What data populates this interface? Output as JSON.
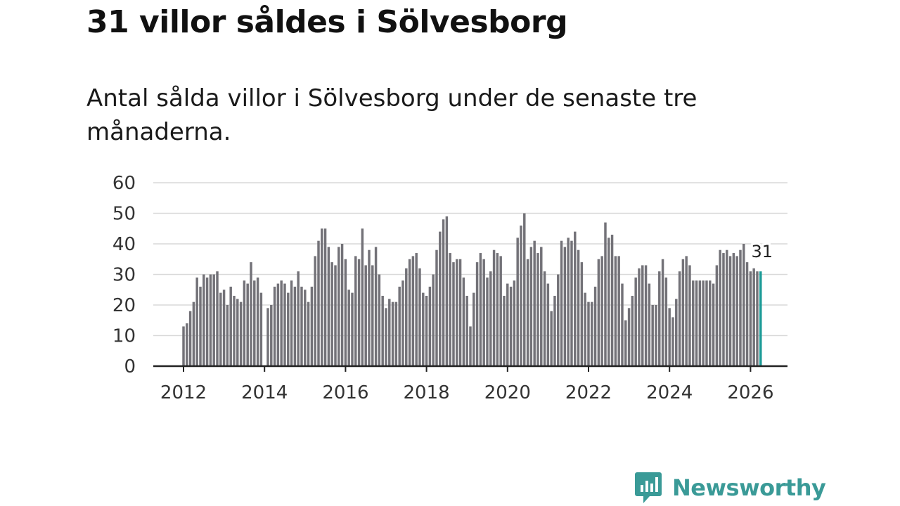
{
  "title": "31 villor såldes i Sölvesborg",
  "subtitle": "Antal sålda villor i Sölvesborg under de senaste tre månaderna.",
  "logo": {
    "text": "Newsworthy",
    "icon": "newsworthy-chart-icon",
    "color": "#3a9a97"
  },
  "colors": {
    "bar": "#737278",
    "highlight": "#1a9a96",
    "grid": "#d9d9d9",
    "axis": "#222222"
  },
  "chart_data": {
    "type": "bar",
    "title": "31 villor såldes i Sölvesborg",
    "xlabel": "",
    "ylabel": "",
    "ylim": [
      0,
      60
    ],
    "yticks": [
      "0",
      "10",
      "20",
      "30",
      "40",
      "50",
      "60"
    ],
    "xticks": [
      "2012",
      "2014",
      "2016",
      "2018",
      "2020",
      "2022",
      "2024",
      "2026"
    ],
    "x_start": 2012.0,
    "x_step": 0.08333,
    "grid": true,
    "highlight_label": "31",
    "values": [
      13,
      14,
      18,
      21,
      29,
      26,
      30,
      29,
      30,
      30,
      31,
      24,
      25,
      20,
      26,
      23,
      22,
      21,
      28,
      27,
      34,
      28,
      29,
      24,
      null,
      19,
      20,
      26,
      27,
      28,
      27,
      24,
      28,
      26,
      31,
      26,
      25,
      21,
      26,
      36,
      41,
      45,
      45,
      39,
      34,
      33,
      39,
      40,
      35,
      25,
      24,
      36,
      35,
      45,
      33,
      38,
      33,
      39,
      30,
      23,
      19,
      22,
      21,
      21,
      26,
      28,
      32,
      35,
      36,
      37,
      32,
      24,
      23,
      26,
      30,
      38,
      44,
      48,
      49,
      37,
      34,
      35,
      35,
      29,
      23,
      13,
      24,
      34,
      37,
      35,
      29,
      31,
      38,
      37,
      36,
      23,
      27,
      26,
      28,
      42,
      46,
      50,
      35,
      39,
      41,
      37,
      39,
      31,
      27,
      18,
      23,
      30,
      41,
      39,
      42,
      41,
      44,
      38,
      34,
      24,
      21,
      21,
      26,
      35,
      36,
      47,
      42,
      43,
      36,
      36,
      27,
      15,
      19,
      23,
      29,
      32,
      33,
      33,
      27,
      20,
      20,
      31,
      35,
      29,
      19,
      16,
      22,
      31,
      35,
      36,
      33,
      28,
      28,
      28,
      28,
      28,
      28,
      27,
      33,
      38,
      37,
      38,
      36,
      37,
      36,
      38,
      40,
      34,
      31,
      32,
      31,
      31
    ]
  }
}
